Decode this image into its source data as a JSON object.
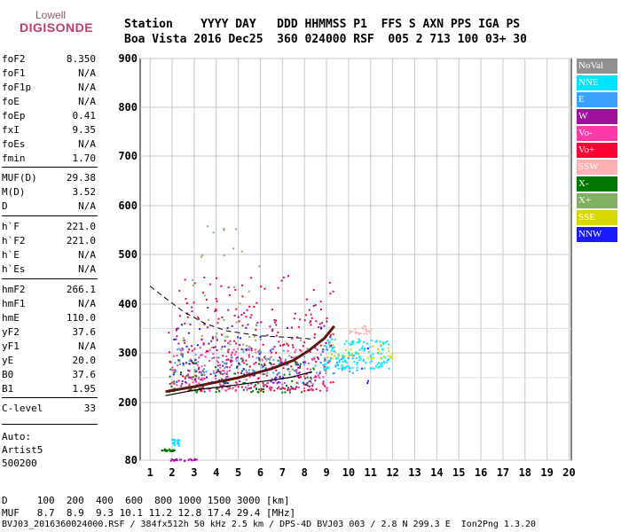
{
  "logo": {
    "line1": "Lowell",
    "line2": "DIGISONDE"
  },
  "header": {
    "line1": "Station    YYYY DAY   DDD HHMMSS P1  FFS S AXN PPS IGA PS",
    "line2": "Boa Vista 2016 Dec25  360 024000 RSF  005 2 713 100 03+ 30"
  },
  "side_params": [
    {
      "k": "foF2",
      "v": "8.350"
    },
    {
      "k": "foF1",
      "v": "N/A"
    },
    {
      "k": "foF1p",
      "v": "N/A"
    },
    {
      "k": "foE",
      "v": "N/A"
    },
    {
      "k": "foEp",
      "v": "0.41"
    },
    {
      "k": "fxI",
      "v": "9.35"
    },
    {
      "k": "foEs",
      "v": "N/A"
    },
    {
      "k": "fmin",
      "v": "1.70"
    },
    {
      "k": "MUF(D)",
      "v": "29.38"
    },
    {
      "k": "M(D)",
      "v": "3.52"
    },
    {
      "k": "D",
      "v": "N/A"
    },
    {
      "k": "h`F",
      "v": "221.0"
    },
    {
      "k": "h`F2",
      "v": "221.0"
    },
    {
      "k": "h`E",
      "v": "N/A"
    },
    {
      "k": "h`Es",
      "v": "N/A"
    },
    {
      "k": "hmF2",
      "v": "266.1"
    },
    {
      "k": "hmF1",
      "v": "N/A"
    },
    {
      "k": "hmE",
      "v": "110.0"
    },
    {
      "k": "yF2",
      "v": "37.6"
    },
    {
      "k": "yF1",
      "v": "N/A"
    },
    {
      "k": "yE",
      "v": "20.0"
    },
    {
      "k": "B0",
      "v": "37.6"
    },
    {
      "k": "B1",
      "v": "1.95"
    },
    {
      "k": "C-level",
      "v": "33"
    }
  ],
  "side_auto": [
    "Auto:",
    "Artist5",
    "500200"
  ],
  "legend": [
    {
      "label": "NoVal",
      "color": "#909090"
    },
    {
      "label": "NNE",
      "color": "#00e5ff"
    },
    {
      "label": "E",
      "color": "#3aa0ff"
    },
    {
      "label": "W",
      "color": "#a0119a"
    },
    {
      "label": "Vo-",
      "color": "#ff3aa8"
    },
    {
      "label": "Vo+",
      "color": "#ff0033"
    },
    {
      "label": "SSW",
      "color": "#ffb0b0"
    },
    {
      "label": "X-",
      "color": "#007700"
    },
    {
      "label": "X+",
      "color": "#80b060"
    },
    {
      "label": "SSE",
      "color": "#d8d800"
    },
    {
      "label": "NNW",
      "color": "#1a1aff"
    }
  ],
  "footer": {
    "line1": "D     100  200  400  600  800 1000 1500 3000 [km]",
    "line2": "MUF   8.7  8.9  9.3 10.1 11.2 12.8 17.4 29.4 [MHz]",
    "line3": "BVJ03_2016360024000.RSF / 384fx512h 50 kHz 2.5 km / DPS-4D BVJ03 003 / 2.8 N 299.3 E  Ion2Png 1.3.20"
  },
  "chart_data": {
    "type": "scatter",
    "x_ticks": [
      "1",
      "2",
      "3",
      "4",
      "5",
      "6",
      "7",
      "8",
      "9",
      "10",
      "11",
      "12",
      "13",
      "14",
      "15",
      "16",
      "17",
      "18",
      "19",
      "20"
    ],
    "y_ticks": [
      "80",
      "200",
      "300",
      "400",
      "500",
      "600",
      "700",
      "800",
      "900"
    ],
    "xlim": [
      1,
      20
    ],
    "ylim_virtual_height_km": [
      80,
      900
    ],
    "y_scale": "non-linear (expanded 200-400 km)",
    "grid": true,
    "legend_position": "right",
    "series": [
      {
        "name": "Vo-",
        "ranges": [
          {
            "f": [
              1.8,
              8.9
            ],
            "h": [
              225,
              310
            ]
          }
        ]
      },
      {
        "name": "Vo+",
        "ranges": [
          {
            "f": [
              1.8,
              9.3
            ],
            "h": [
              225,
              460
            ]
          }
        ]
      },
      {
        "name": "W",
        "ranges": [
          {
            "f": [
              2.0,
              9.0
            ],
            "h": [
              230,
              400
            ]
          }
        ]
      },
      {
        "name": "NNE",
        "ranges": [
          {
            "f": [
              8.8,
              11.8
            ],
            "h": [
              270,
              330
            ]
          }
        ]
      },
      {
        "name": "E",
        "ranges": [
          {
            "f": [
              2.0,
              10.5
            ],
            "h": [
              260,
              310
            ]
          }
        ]
      },
      {
        "name": "SSW",
        "ranges": [
          {
            "f": [
              10.0,
              11.0
            ],
            "h": [
              340,
              360
            ]
          }
        ]
      },
      {
        "name": "X-",
        "ranges": [
          {
            "f": [
              1.8,
              8.5
            ],
            "h": [
              222,
              290
            ]
          }
        ]
      },
      {
        "name": "X+",
        "ranges": [
          {
            "f": [
              2.3,
              6.0
            ],
            "h": [
              300,
              560
            ]
          }
        ]
      },
      {
        "name": "SSE",
        "ranges": [
          {
            "f": [
              9.0,
              12.0
            ],
            "h": [
              290,
              320
            ]
          }
        ]
      },
      {
        "name": "NNW",
        "ranges": [
          {
            "f": [
              2.0,
              11.0
            ],
            "h": [
              240,
              360
            ]
          }
        ]
      },
      {
        "name": "NoVal",
        "ranges": [
          {
            "f": [
              2.0,
              9.0
            ],
            "h": [
              230,
              330
            ]
          }
        ]
      }
    ],
    "low_echoes": [
      {
        "f": [
          1.5,
          2.1
        ],
        "h": [
          100,
          105
        ],
        "series": "X-"
      },
      {
        "f": [
          1.9,
          2.3
        ],
        "h": [
          110,
          125
        ],
        "series": "NNE"
      },
      {
        "f": [
          1.8,
          3.1
        ],
        "h": [
          80,
          84
        ],
        "series": "W"
      }
    ],
    "profile_curve": [
      [
        1.7,
        214
      ],
      [
        3,
        225
      ],
      [
        5,
        236
      ],
      [
        7,
        248
      ],
      [
        7.5,
        252
      ],
      [
        8.0,
        258
      ],
      [
        8.35,
        262
      ]
    ],
    "trace_curve": [
      [
        1.7,
        222
      ],
      [
        3,
        232
      ],
      [
        5,
        250
      ],
      [
        6.5,
        268
      ],
      [
        7.5,
        285
      ],
      [
        8.2,
        305
      ],
      [
        8.9,
        330
      ],
      [
        9.35,
        355
      ]
    ],
    "dashed_curve": [
      [
        1.0,
        436
      ],
      [
        1.7,
        412
      ],
      [
        2.5,
        385
      ],
      [
        3.5,
        360
      ],
      [
        4.5,
        345
      ],
      [
        6.0,
        335
      ],
      [
        8.0,
        330
      ],
      [
        8.35,
        328
      ]
    ]
  }
}
